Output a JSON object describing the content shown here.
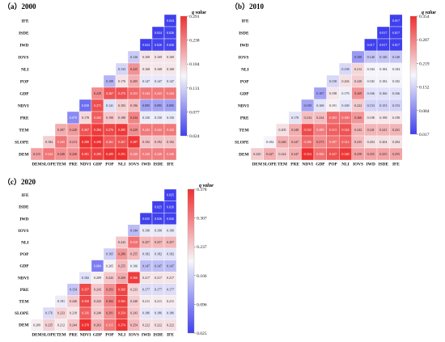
{
  "chart_data": [
    {
      "type": "heatmap",
      "title": "（a）2000",
      "colorbar_title": "q value",
      "colorbar_ticks": [
        "0.291",
        "0.238",
        "0.184",
        "0.131",
        "0.077",
        "0.024"
      ],
      "vmin": 0.024,
      "vmax": 0.291,
      "rows": [
        "IFE",
        "ISDE",
        "IWD",
        "IOVS",
        "NLI",
        "POP",
        "GDP",
        "NDVI",
        "PRE",
        "TEM",
        "SLOPE",
        "DEM"
      ],
      "cols": [
        "DEM",
        "SLOPE",
        "TEM",
        "PRE",
        "NDVI",
        "GDP",
        "POP",
        "NLI",
        "IOVS",
        "IWD",
        "ISDE",
        "IFE"
      ],
      "matrix": [
        [
          "",
          "",
          "",
          "",
          "",
          "",
          "",
          "",
          "",
          "",
          "",
          "0.024"
        ],
        [
          "",
          "",
          "",
          "",
          "",
          "",
          "",
          "",
          "",
          "",
          "0.024",
          "0.026"
        ],
        [
          "",
          "",
          "",
          "",
          "",
          "",
          "",
          "",
          "",
          "0.024",
          "0.026",
          "0.026"
        ],
        [
          "",
          "",
          "",
          "",
          "",
          "",
          "",
          "",
          "0.126",
          "0.169",
          "0.169",
          "0.169"
        ],
        [
          "",
          "",
          "",
          "",
          "",
          "",
          "",
          "0.133",
          "0.225",
          "0.168",
          "0.168",
          "0.168"
        ],
        [
          "",
          "",
          "",
          "",
          "",
          "",
          "0.109",
          "0.170",
          "0.205",
          "0.147",
          "0.147",
          "0.147"
        ],
        [
          "",
          "",
          "",
          "",
          "",
          "0.229",
          "0.267",
          "0.270",
          "0.253",
          "0.244",
          "0.243",
          "0.244"
        ],
        [
          "",
          "",
          "",
          "",
          "0.058",
          "0.271",
          "0.141",
          "0.183",
          "0.196",
          "0.095",
          "0.095",
          "0.095"
        ],
        [
          "",
          "",
          "",
          "0.078",
          "0.178",
          "0.260",
          "0.190",
          "0.188",
          "0.234",
          "0.150",
          "0.150",
          "0.150"
        ],
        [
          "",
          "",
          "0.207",
          "0.220",
          "0.267",
          "0.284",
          "0.276",
          "0.285",
          "0.229",
          "0.242",
          "0.242",
          "0.242"
        ],
        [
          "",
          "0.184",
          "0.245",
          "0.213",
          "0.288",
          "0.290",
          "0.261",
          "0.267",
          "0.287",
          "0.192",
          "0.192",
          "0.192"
        ],
        [
          "0.215",
          "0.244",
          "0.226",
          "0.226",
          "0.281",
          "0.280",
          "0.289",
          "0.291",
          "0.240",
          "0.240",
          "0.240",
          "0.240"
        ]
      ]
    },
    {
      "type": "heatmap",
      "title": "（b）2010",
      "colorbar_title": "q value",
      "colorbar_ticks": [
        "0.354",
        "0.287",
        "0.219",
        "0.152",
        "0.084",
        "0.017"
      ],
      "vmin": 0.017,
      "vmax": 0.354,
      "rows": [
        "IFE",
        "ISDE",
        "IWD",
        "IOVS",
        "NLI",
        "POP",
        "GDP",
        "NDVI",
        "PRE",
        "TEM",
        "SLOPE",
        "DEM"
      ],
      "cols": [
        "DEM",
        "SLOPE",
        "TEM",
        "PRE",
        "NDVI",
        "GDP",
        "POP",
        "NLI",
        "IOVS",
        "IWD",
        "ISDE",
        "IFE"
      ],
      "matrix": [
        [
          "",
          "",
          "",
          "",
          "",
          "",
          "",
          "",
          "",
          "",
          "",
          "0.017"
        ],
        [
          "",
          "",
          "",
          "",
          "",
          "",
          "",
          "",
          "",
          "",
          "0.017",
          "0.017"
        ],
        [
          "",
          "",
          "",
          "",
          "",
          "",
          "",
          "",
          "",
          "0.017",
          "0.017",
          "0.017"
        ],
        [
          "",
          "",
          "",
          "",
          "",
          "",
          "",
          "",
          "0.100",
          "0.140",
          "0.140",
          "0.140"
        ],
        [
          "",
          "",
          "",
          "",
          "",
          "",
          "",
          "0.158",
          "0.212",
          "0.184",
          "0.184",
          "0.184"
        ],
        [
          "",
          "",
          "",
          "",
          "",
          "",
          "0.158",
          "0.204",
          "0.220",
          "0.182",
          "0.182",
          "0.182"
        ],
        [
          "",
          "",
          "",
          "",
          "",
          "0.107",
          "0.198",
          "0.179",
          "0.269",
          "0.166",
          "0.166",
          "0.166"
        ],
        [
          "",
          "",
          "",
          "",
          "0.109",
          "0.168",
          "0.191",
          "0.169",
          "0.222",
          "0.153",
          "0.153",
          "0.153"
        ],
        [
          "",
          "",
          "",
          "0.170",
          "0.234",
          "0.234",
          "0.303",
          "0.300",
          "0.266",
          "0.198",
          "0.198",
          "0.198"
        ],
        [
          "",
          "",
          "0.205",
          "0.248",
          "0.332",
          "0.289",
          "0.313",
          "0.324",
          "0.242",
          "0.241",
          "0.241",
          "0.241"
        ],
        [
          "",
          "0.184",
          "0.246",
          "0.247",
          "0.306",
          "0.273",
          "0.297",
          "0.312",
          "0.235",
          "0.204",
          "0.204",
          "0.204"
        ],
        [
          "0.220",
          "0.247",
          "0.224",
          "0.247",
          "0.354",
          "0.300",
          "0.327",
          "0.348",
          "0.258",
          "0.255",
          "0.255",
          "0.255"
        ]
      ]
    },
    {
      "type": "heatmap",
      "title": "（c）2020",
      "colorbar_title": "q value",
      "colorbar_ticks": [
        "0.378",
        "0.307",
        "0.237",
        "0.166",
        "0.096",
        "0.025"
      ],
      "vmin": 0.025,
      "vmax": 0.378,
      "rows": [
        "IFE",
        "ISDE",
        "IWD",
        "IOVS",
        "NLI",
        "POP",
        "GDP",
        "NDVI",
        "PRE",
        "TEM",
        "SLOPE",
        "DEM"
      ],
      "cols": [
        "DEM",
        "SLOPE",
        "TEM",
        "PRE",
        "NDVI",
        "GDP",
        "POP",
        "NLI",
        "IOVS",
        "IWD",
        "ISDE",
        "IFE"
      ],
      "matrix": [
        [
          "",
          "",
          "",
          "",
          "",
          "",
          "",
          "",
          "",
          "",
          "",
          "0.025"
        ],
        [
          "",
          "",
          "",
          "",
          "",
          "",
          "",
          "",
          "",
          "",
          "0.025",
          "0.026"
        ],
        [
          "",
          "",
          "",
          "",
          "",
          "",
          "",
          "",
          "",
          "0.025",
          "0.026",
          "0.026"
        ],
        [
          "",
          "",
          "",
          "",
          "",
          "",
          "",
          "",
          "0.144",
          "0.190",
          "0.190",
          "0.190"
        ],
        [
          "",
          "",
          "",
          "",
          "",
          "",
          "",
          "0.243",
          "0.319",
          "0.257",
          "0.257",
          "0.257"
        ],
        [
          "",
          "",
          "",
          "",
          "",
          "",
          "0.165",
          "0.286",
          "0.255",
          "0.182",
          "0.182",
          "0.182"
        ],
        [
          "",
          "",
          "",
          "",
          "",
          "0.084",
          "0.205",
          "0.255",
          "0.196",
          "0.147",
          "0.147",
          "0.147"
        ],
        [
          "",
          "",
          "",
          "",
          "0.182",
          "0.209",
          "0.243",
          "0.269",
          "0.366",
          "0.217",
          "0.217",
          "0.217"
        ],
        [
          "",
          "",
          "",
          "0.154",
          "0.357",
          "0.243",
          "0.293",
          "0.360",
          "0.233",
          "0.177",
          "0.177",
          "0.177"
        ],
        [
          "",
          "",
          "0.191",
          "0.240",
          "0.358",
          "0.243",
          "0.302",
          "0.365",
          "0.240",
          "0.211",
          "0.211",
          "0.211"
        ],
        [
          "",
          "0.176",
          "0.233",
          "0.218",
          "0.336",
          "0.240",
          "0.291",
          "0.354",
          "0.243",
          "0.186",
          "0.186",
          "0.186"
        ],
        [
          "0.209",
          "0.235",
          "0.212",
          "0.244",
          "0.378",
          "0.263",
          "0.315",
          "0.374",
          "0.254",
          "0.222",
          "0.222",
          "0.222"
        ]
      ]
    }
  ]
}
